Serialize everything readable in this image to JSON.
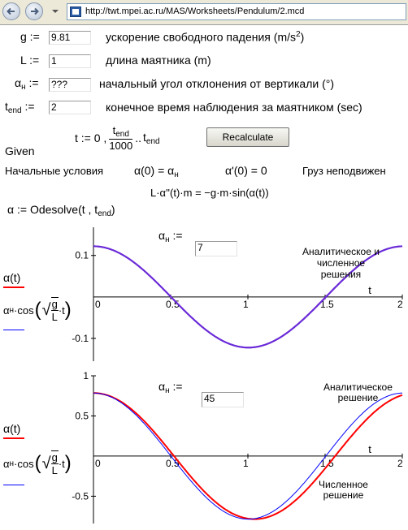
{
  "browser": {
    "url": "http://twt.mpei.ac.ru/MAS/Worksheets/Pendulum/2.mcd"
  },
  "params": {
    "g": {
      "symbol": "g :=",
      "value": "9.81",
      "desc": "ускорение свободного падения (m/s",
      "desc_sup": "2",
      "desc_end": ")"
    },
    "L": {
      "symbol": "L :=",
      "value": "1",
      "desc": "длина маятника (m)"
    },
    "alpha": {
      "symbol": "α",
      "sub": "н",
      "assign": ":=",
      "value": "???",
      "desc": "начальный угол отклонения от вертикали (°)"
    },
    "tend": {
      "symbol": "t",
      "sub": "end",
      "assign": ":=",
      "value": "2",
      "desc": "конечное время наблюдения за маятником (sec)"
    }
  },
  "time_range": {
    "lhs": "t := 0 ,",
    "num": "t",
    "num_sub": "end",
    "den": "1000",
    "dots": "..",
    "end": "t",
    "end_sub": "end"
  },
  "recalc_label": "Recalculate",
  "given": "Given",
  "initial": {
    "label": "Начальные условия",
    "cond1_l": "α(0) = α",
    "cond1_sub": "н",
    "cond2": "α'(0) = 0",
    "rest": "Груз неподвижен"
  },
  "equation": "L·α''(t)·m = −g·m·sin(α(t))",
  "odesolve": {
    "lhs": "α := Odesolve(t , t",
    "sub": "end",
    "close": ")"
  },
  "legend": {
    "alpha_t": "α(t)",
    "analytic_pre": "α",
    "analytic_sub": "н",
    "analytic_cos": "·cos",
    "g": "g",
    "L": "L",
    "t": "·t"
  },
  "colors": {
    "numeric": "#ff0000",
    "analytic": "#0000ff",
    "overlap": "#6a2ad8"
  },
  "chart_data": [
    {
      "type": "line",
      "input_label_sym": "α",
      "input_label_sub": "н",
      "input_label_assign": ":=",
      "input_value": "7",
      "annotation": [
        "Аналитическое и",
        "численное",
        "решения"
      ],
      "xlabel": "t",
      "xlim": [
        0,
        2
      ],
      "ylim": [
        -0.155,
        0.168
      ],
      "xticks": [
        0,
        0.5,
        1,
        1.5,
        2
      ],
      "xtick_labels": [
        "0",
        "0.5",
        "1",
        "1.5",
        "2"
      ],
      "yticks": [
        0.1,
        -0.1
      ],
      "ytick_labels": [
        "0.1",
        "-0.1"
      ],
      "series": [
        {
          "name": "α(t)",
          "amplitude_deg": 7,
          "kind": "numeric"
        },
        {
          "name": "αн·cos(√(g/L)·t)",
          "amplitude_deg": 7,
          "kind": "analytic"
        }
      ]
    },
    {
      "type": "line",
      "input_label_sym": "α",
      "input_label_sub": "н",
      "input_label_assign": ":=",
      "input_value": "45",
      "annotation_top": [
        "Аналитическое",
        "решение"
      ],
      "annotation_bottom": [
        "Численное",
        "решение"
      ],
      "xlabel": "t",
      "xlim": [
        0,
        2
      ],
      "ylim": [
        -0.84,
        1.0
      ],
      "xticks": [
        0,
        0.5,
        1,
        1.5,
        2
      ],
      "xtick_labels": [
        "0",
        "0.5",
        "1",
        "1.5",
        "2"
      ],
      "yticks": [
        1,
        0.5,
        -0.5
      ],
      "ytick_labels": [
        "1",
        "0.5",
        "-0.5"
      ],
      "series": [
        {
          "name": "α(t)",
          "amplitude_deg": 45,
          "kind": "numeric"
        },
        {
          "name": "αн·cos(√(g/L)·t)",
          "amplitude_deg": 45,
          "kind": "analytic"
        }
      ]
    }
  ]
}
